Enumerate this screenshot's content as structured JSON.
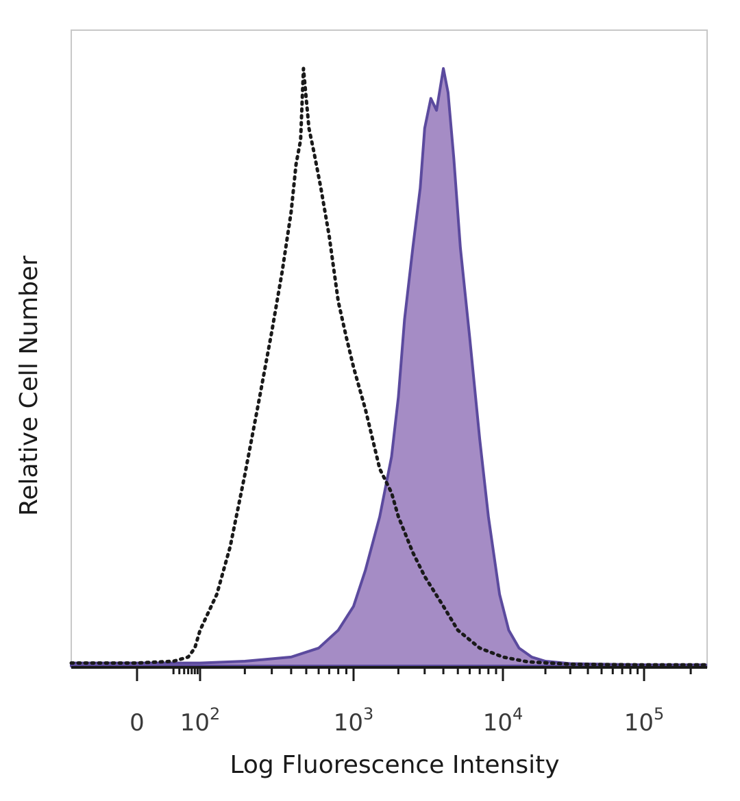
{
  "chart_data": {
    "type": "area",
    "title": "",
    "xlabel": "Log Fluorescence Intensity",
    "ylabel": "Relative Cell Number",
    "x_scale": "biexponential",
    "xlim": [
      -50,
      250000
    ],
    "ylim": [
      0,
      100
    ],
    "y_ticks_labeled": false,
    "grid": false,
    "legend": "none",
    "x_ticks": [
      {
        "value": 0,
        "label_base": "0",
        "label_exp": ""
      },
      {
        "value": 100,
        "label_base": "10",
        "label_exp": "2"
      },
      {
        "value": 1000,
        "label_base": "10",
        "label_exp": "3"
      },
      {
        "value": 10000,
        "label_base": "10",
        "label_exp": "4"
      },
      {
        "value": 100000,
        "label_base": "10",
        "label_exp": "5"
      }
    ],
    "series": [
      {
        "style": "dotted-outline",
        "color": "#1a1a1a",
        "points": [
          [
            -50,
            0.5
          ],
          [
            0,
            0.5
          ],
          [
            30,
            0.8
          ],
          [
            60,
            1.5
          ],
          [
            80,
            3
          ],
          [
            100,
            6
          ],
          [
            130,
            12
          ],
          [
            160,
            20
          ],
          [
            200,
            32
          ],
          [
            250,
            45
          ],
          [
            300,
            56
          ],
          [
            350,
            66
          ],
          [
            400,
            76
          ],
          [
            430,
            84
          ],
          [
            460,
            88
          ],
          [
            480,
            100
          ],
          [
            520,
            90
          ],
          [
            560,
            86
          ],
          [
            620,
            80
          ],
          [
            700,
            72
          ],
          [
            800,
            61
          ],
          [
            900,
            55
          ],
          [
            1000,
            50
          ],
          [
            1200,
            43
          ],
          [
            1500,
            33
          ],
          [
            1800,
            29
          ],
          [
            2000,
            25
          ],
          [
            2500,
            19
          ],
          [
            3000,
            15
          ],
          [
            4000,
            10
          ],
          [
            5000,
            6
          ],
          [
            7000,
            3
          ],
          [
            10000,
            1.5
          ],
          [
            15000,
            0.7
          ],
          [
            30000,
            0.3
          ],
          [
            100000,
            0.2
          ],
          [
            250000,
            0.2
          ]
        ]
      },
      {
        "style": "filled",
        "color": "#5b4a9e",
        "fill": "#a58cc5",
        "points": [
          [
            -50,
            0.5
          ],
          [
            0,
            0.5
          ],
          [
            100,
            0.5
          ],
          [
            200,
            0.8
          ],
          [
            400,
            1.5
          ],
          [
            600,
            3
          ],
          [
            800,
            6
          ],
          [
            1000,
            10
          ],
          [
            1200,
            16
          ],
          [
            1500,
            25
          ],
          [
            1800,
            35
          ],
          [
            2000,
            45
          ],
          [
            2200,
            58
          ],
          [
            2500,
            70
          ],
          [
            2800,
            80
          ],
          [
            3000,
            90
          ],
          [
            3300,
            95
          ],
          [
            3600,
            93
          ],
          [
            4000,
            100
          ],
          [
            4300,
            96
          ],
          [
            4700,
            85
          ],
          [
            5200,
            70
          ],
          [
            6000,
            55
          ],
          [
            7000,
            38
          ],
          [
            8000,
            25
          ],
          [
            9500,
            12
          ],
          [
            11000,
            6
          ],
          [
            13000,
            3
          ],
          [
            16000,
            1.5
          ],
          [
            20000,
            0.8
          ],
          [
            30000,
            0.4
          ],
          [
            100000,
            0.2
          ],
          [
            250000,
            0.2
          ]
        ]
      }
    ]
  }
}
